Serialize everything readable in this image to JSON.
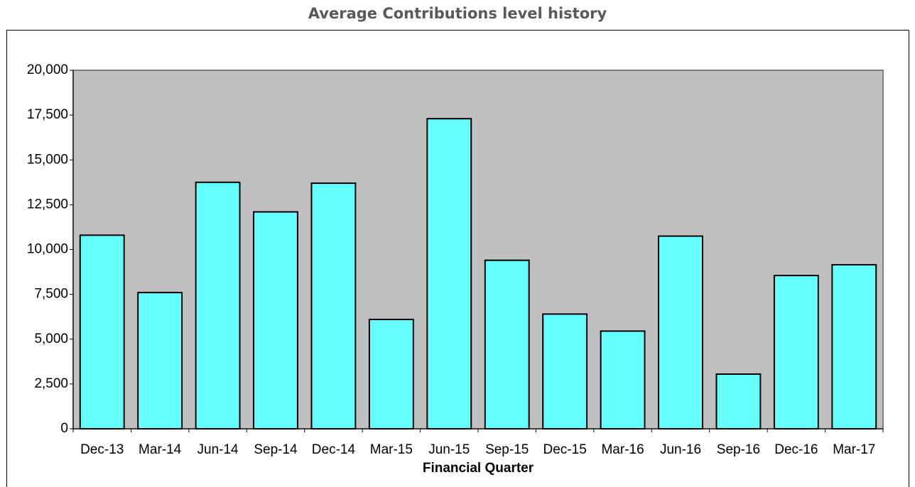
{
  "chart_data": {
    "type": "bar",
    "title": "Average Contributions level history",
    "x_label": "Financial Quarter",
    "categories": [
      "Dec-13",
      "Mar-14",
      "Jun-14",
      "Sep-14",
      "Dec-14",
      "Mar-15",
      "Jun-15",
      "Sep-15",
      "Dec-15",
      "Mar-16",
      "Jun-16",
      "Sep-16",
      "Dec-16",
      "Mar-17"
    ],
    "values": [
      10800,
      7600,
      13750,
      12100,
      13700,
      6100,
      17300,
      9400,
      6400,
      5450,
      10750,
      3050,
      8550,
      9150
    ],
    "color": "#66ffff",
    "background": "#c0c0c0",
    "ylim": [
      0,
      20000
    ],
    "yticks": [
      0,
      {
        "value": 2500,
        "label": "2,500"
      },
      {
        "value": 5000,
        "label": "5,000"
      },
      {
        "value": 7500,
        "label": "7,500"
      },
      {
        "value": 10000,
        "label": "10,000"
      },
      {
        "value": 12500,
        "label": "12,500"
      },
      {
        "value": 15000,
        "label": "15,000"
      },
      {
        "value": 17500,
        "label": "17,500"
      },
      {
        "value": 20000,
        "label": "20,000"
      }
    ],
    "grid": false
  }
}
